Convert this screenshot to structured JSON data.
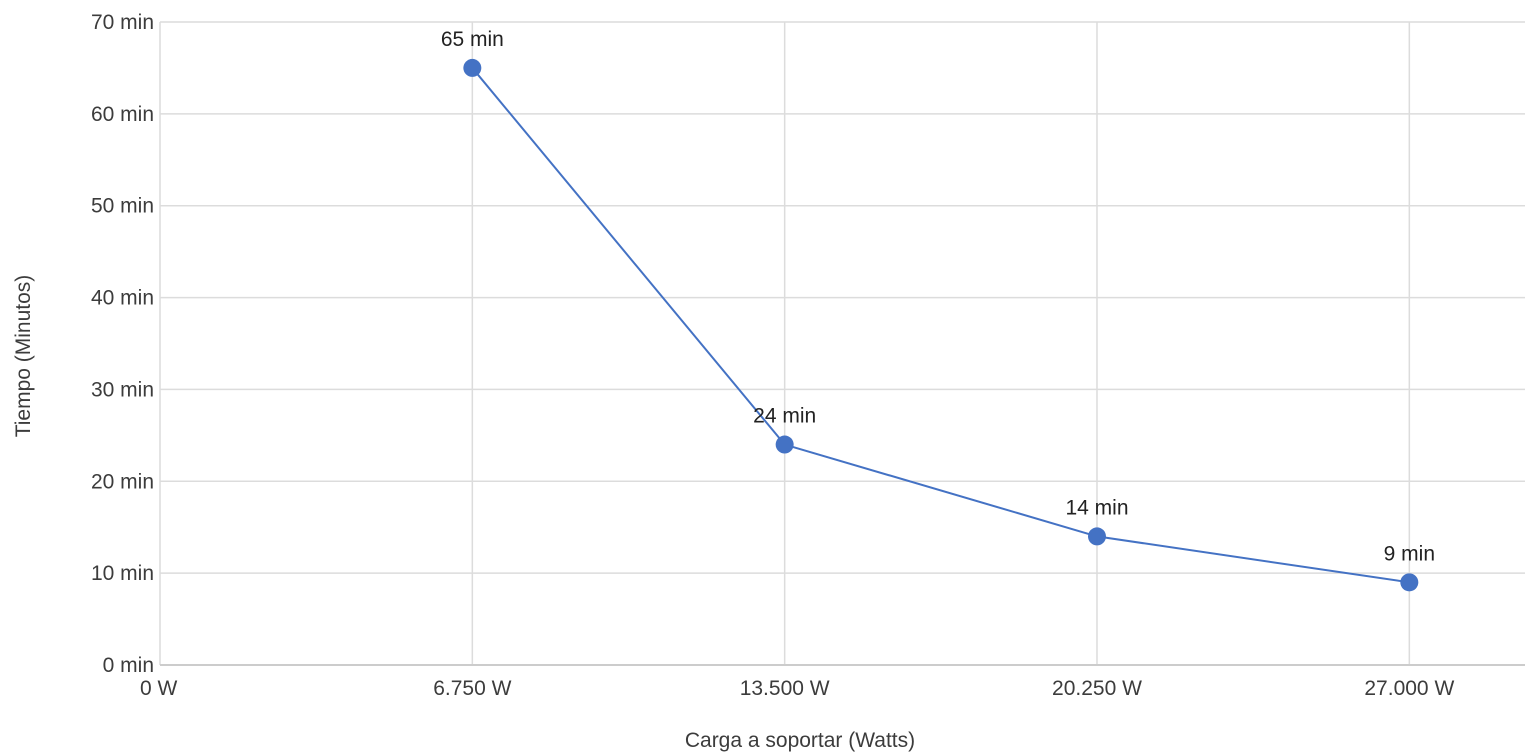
{
  "chart_data": {
    "type": "line",
    "title": "",
    "xlabel": "Carga a soportar (Watts)",
    "ylabel": "Tiempo (Minutos)",
    "xlim": [
      0,
      29500
    ],
    "ylim": [
      0,
      70
    ],
    "grid": true,
    "legend": "none",
    "color": "#4472c4",
    "x_ticks": [
      {
        "value": 0,
        "label": "0 W"
      },
      {
        "value": 6750,
        "label": "6.750 W"
      },
      {
        "value": 13500,
        "label": "13.500 W"
      },
      {
        "value": 20250,
        "label": "20.250 W"
      },
      {
        "value": 27000,
        "label": "27.000 W"
      }
    ],
    "y_ticks": [
      {
        "value": 0,
        "label": "0 min"
      },
      {
        "value": 10,
        "label": "10 min"
      },
      {
        "value": 20,
        "label": "20 min"
      },
      {
        "value": 30,
        "label": "30 min"
      },
      {
        "value": 40,
        "label": "40 min"
      },
      {
        "value": 50,
        "label": "50 min"
      },
      {
        "value": 60,
        "label": "60 min"
      },
      {
        "value": 70,
        "label": "70 min"
      }
    ],
    "series": [
      {
        "x": [
          6750,
          13500,
          20250,
          27000
        ],
        "y": [
          65,
          24,
          14,
          9
        ],
        "labels": [
          "65 min",
          "24 min",
          "14 min",
          "9 min"
        ]
      }
    ]
  }
}
